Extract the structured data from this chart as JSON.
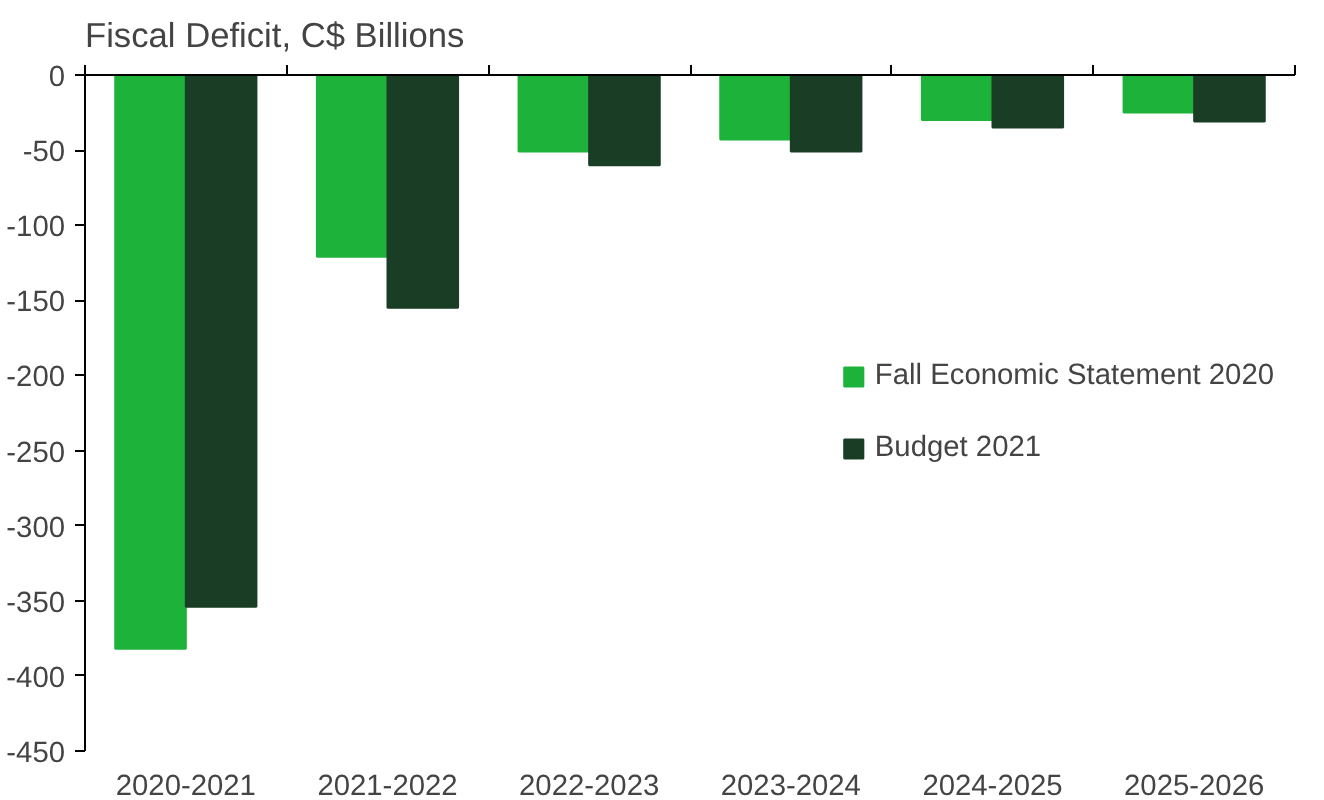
{
  "chart_data": {
    "type": "bar",
    "title": "Fiscal Deficit, C$ Billions",
    "categories": [
      "2020-2021",
      "2021-2022",
      "2022-2023",
      "2023-2024",
      "2024-2025",
      "2025-2026"
    ],
    "series": [
      {
        "name": "Fall Economic Statement 2020",
        "color": "#1db33a",
        "values": [
          -382,
          -121,
          -51,
          -43,
          -30,
          -25
        ]
      },
      {
        "name": "Budget 2021",
        "color": "#1a3d25",
        "values": [
          -354,
          -155,
          -60,
          -51,
          -35,
          -31
        ]
      }
    ],
    "ylim": [
      -450,
      0
    ],
    "yticks": [
      -450,
      -400,
      -350,
      -300,
      -250,
      -200,
      -150,
      -100,
      -50,
      0
    ],
    "grid": false,
    "legend": "center right"
  }
}
